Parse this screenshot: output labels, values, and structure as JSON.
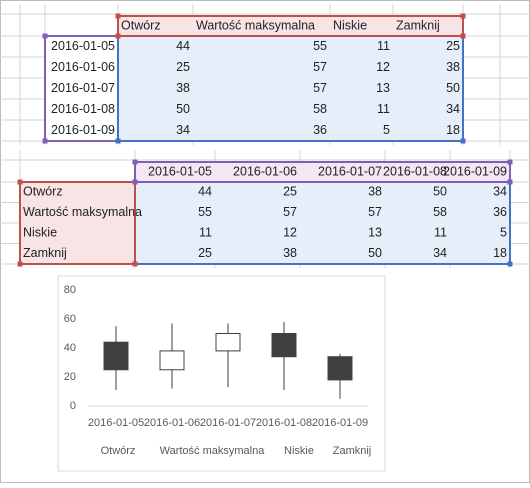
{
  "table1": {
    "header": [
      "Otwórz",
      "Wartość maksymalna",
      "Niskie",
      "Zamknij"
    ],
    "rows": [
      {
        "date": "2016-01-05",
        "values": [
          44,
          55,
          11,
          25
        ]
      },
      {
        "date": "2016-01-06",
        "values": [
          25,
          57,
          12,
          38
        ]
      },
      {
        "date": "2016-01-07",
        "values": [
          38,
          57,
          13,
          50
        ]
      },
      {
        "date": "2016-01-08",
        "values": [
          50,
          58,
          11,
          34
        ]
      },
      {
        "date": "2016-01-09",
        "values": [
          34,
          36,
          5,
          18
        ]
      }
    ]
  },
  "table2": {
    "header": [
      "2016-01-05",
      "2016-01-06",
      "2016-01-07",
      "2016-01-08",
      "2016-01-09"
    ],
    "rows": [
      {
        "label": "Otwórz",
        "values": [
          44,
          25,
          38,
          50,
          34
        ]
      },
      {
        "label": "Wartość maksymalna",
        "values": [
          55,
          57,
          57,
          58,
          36
        ]
      },
      {
        "label": "Niskie",
        "values": [
          11,
          12,
          13,
          11,
          5
        ]
      },
      {
        "label": "Zamknij",
        "values": [
          25,
          38,
          50,
          34,
          18
        ]
      }
    ]
  },
  "chart_data": {
    "type": "candlestick",
    "categories": [
      "2016-01-05",
      "2016-01-06",
      "2016-01-07",
      "2016-01-08",
      "2016-01-09"
    ],
    "open": [
      44,
      25,
      38,
      50,
      34
    ],
    "high": [
      55,
      57,
      57,
      58,
      36
    ],
    "low": [
      11,
      12,
      13,
      11,
      5
    ],
    "close": [
      25,
      38,
      50,
      34,
      18
    ],
    "up_color": "#ffffff",
    "down_color": "#404040",
    "legend": [
      "Otwórz",
      "Wartość maksymalna",
      "Niskie",
      "Zamknij"
    ],
    "ylim": [
      0,
      80
    ],
    "yticks": [
      0,
      20,
      40,
      60,
      80
    ]
  }
}
